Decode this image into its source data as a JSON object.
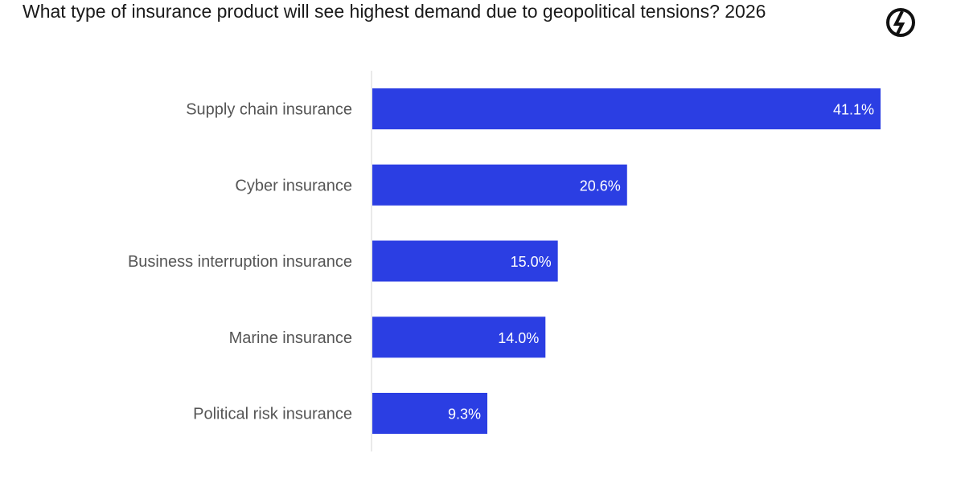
{
  "title": "What type of insurance product will see highest demand due to geopolitical tensions? 2026",
  "logo_icon": "brand-logo-icon",
  "colors": {
    "bar": "#2b3ee3",
    "axis": "#d6d6d6",
    "category_text": "#555555",
    "value_text": "#ffffff"
  },
  "chart_data": {
    "type": "bar",
    "orientation": "horizontal",
    "title": "What type of insurance product will see highest demand due to geopolitical tensions? 2026",
    "categories": [
      "Supply chain insurance",
      "Cyber insurance",
      "Business interruption insurance",
      "Marine insurance",
      "Political risk insurance"
    ],
    "values": [
      41.1,
      20.6,
      15.0,
      14.0,
      9.3
    ],
    "value_labels": [
      "41.1%",
      "20.6%",
      "15.0%",
      "14.0%",
      "9.3%"
    ],
    "unit": "%",
    "xlim": [
      0,
      43
    ],
    "grid": false,
    "legend": "none"
  }
}
